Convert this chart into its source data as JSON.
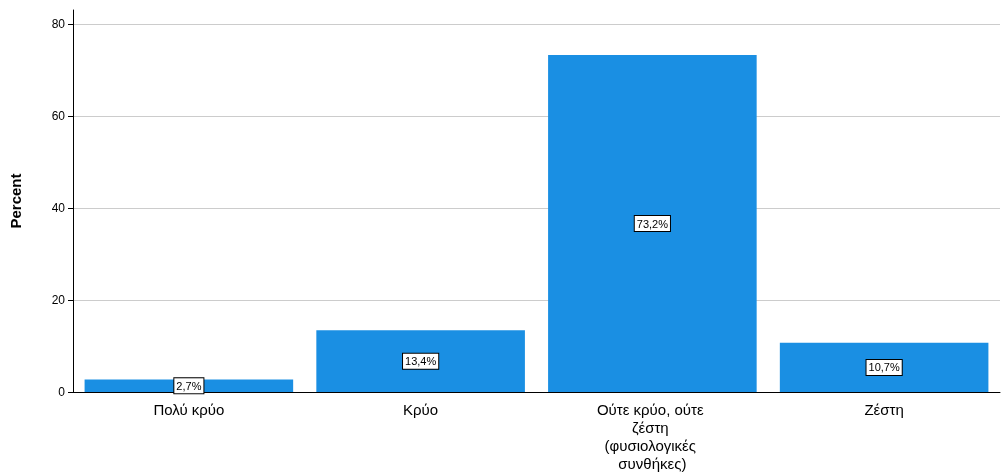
{
  "chart_data": {
    "type": "bar",
    "ylabel": "Percent",
    "categories": [
      "Πολύ κρύο",
      "Κρύο",
      "Ούτε κρύο, ούτε ζέστη (φυσιολογικές συνθήκες)",
      "Ζέστη"
    ],
    "values": [
      2.7,
      13.4,
      73.2,
      10.7
    ],
    "value_labels": [
      "2,7%",
      "13,4%",
      "73,2%",
      "10,7%"
    ],
    "color": "#1a8fe3",
    "ylim": [
      0,
      83
    ],
    "yticks": [
      0,
      20,
      40,
      60,
      80
    ],
    "grid": "y"
  }
}
